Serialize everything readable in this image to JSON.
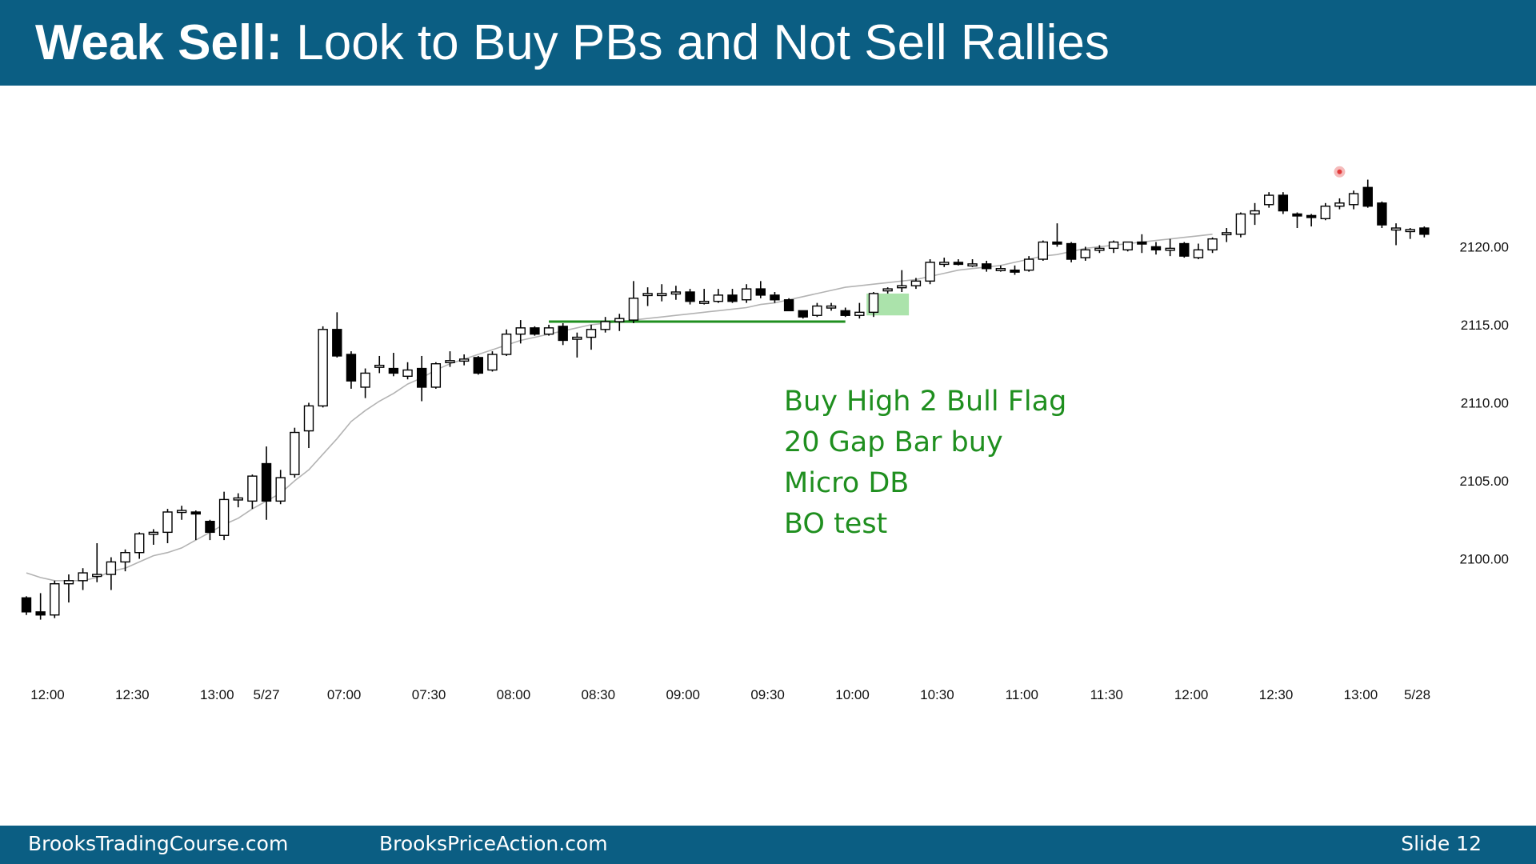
{
  "title": {
    "bold": "Weak Sell:",
    "rest": " Look to Buy PBs and Not Sell Rallies"
  },
  "footer": {
    "left": "BrooksTradingCourse.com",
    "middle": "BrooksPriceAction.com",
    "slide": "Slide  12"
  },
  "chart_data": {
    "type": "candlestick",
    "title": "Weak Sell: Look to Buy PBs and Not Sell Rallies",
    "y_ticks": [
      "2100.00",
      "2105.00",
      "2110.00",
      "2115.00",
      "2120.00"
    ],
    "y_tick_values": [
      2100,
      2105,
      2110,
      2115,
      2120
    ],
    "ylim": [
      2092.9,
      2125.2
    ],
    "x_ticks": [
      "12:00",
      "12:30",
      "13:00",
      "5/27",
      "07:00",
      "07:30",
      "08:00",
      "08:30",
      "09:00",
      "09:30",
      "10:00",
      "10:30",
      "11:00",
      "11:30",
      "12:00",
      "12:30",
      "13:00",
      "5/28"
    ],
    "x_tick_bar_index": [
      1.5,
      7.5,
      13.5,
      17,
      22.5,
      28.5,
      34.5,
      40.5,
      46.5,
      52.5,
      58.5,
      64.5,
      70.5,
      76.5,
      82.5,
      88.5,
      94.5,
      98.5
    ],
    "grid": false,
    "ema_period": 20,
    "bars": [
      {
        "o": 2097.5,
        "h": 2097.6,
        "l": 2096.4,
        "c": 2096.6
      },
      {
        "o": 2096.6,
        "h": 2097.8,
        "l": 2096.1,
        "c": 2096.4
      },
      {
        "o": 2096.4,
        "h": 2098.6,
        "l": 2096.2,
        "c": 2098.4
      },
      {
        "o": 2098.4,
        "h": 2099.0,
        "l": 2097.2,
        "c": 2098.6
      },
      {
        "o": 2098.6,
        "h": 2099.4,
        "l": 2098.0,
        "c": 2099.1
      },
      {
        "o": 2099.0,
        "h": 2101.0,
        "l": 2098.5,
        "c": 2099.0
      },
      {
        "o": 2099.0,
        "h": 2100.1,
        "l": 2098.0,
        "c": 2099.8
      },
      {
        "o": 2099.8,
        "h": 2100.6,
        "l": 2099.2,
        "c": 2100.4
      },
      {
        "o": 2100.4,
        "h": 2101.7,
        "l": 2100.0,
        "c": 2101.6
      },
      {
        "o": 2101.6,
        "h": 2101.9,
        "l": 2100.9,
        "c": 2101.7
      },
      {
        "o": 2101.7,
        "h": 2103.2,
        "l": 2101.0,
        "c": 2103.0
      },
      {
        "o": 2103.0,
        "h": 2103.4,
        "l": 2102.5,
        "c": 2103.1
      },
      {
        "o": 2103.0,
        "h": 2103.1,
        "l": 2101.2,
        "c": 2102.9
      },
      {
        "o": 2102.4,
        "h": 2102.5,
        "l": 2101.2,
        "c": 2101.7
      },
      {
        "o": 2101.5,
        "h": 2104.3,
        "l": 2101.2,
        "c": 2103.8
      },
      {
        "o": 2103.8,
        "h": 2104.2,
        "l": 2103.3,
        "c": 2103.9
      },
      {
        "o": 2103.7,
        "h": 2105.4,
        "l": 2103.2,
        "c": 2105.3
      },
      {
        "o": 2106.1,
        "h": 2107.2,
        "l": 2102.5,
        "c": 2103.7
      },
      {
        "o": 2103.7,
        "h": 2105.7,
        "l": 2103.5,
        "c": 2105.2
      },
      {
        "o": 2105.4,
        "h": 2108.4,
        "l": 2105.2,
        "c": 2108.1
      },
      {
        "o": 2108.2,
        "h": 2110.0,
        "l": 2107.1,
        "c": 2109.8
      },
      {
        "o": 2109.8,
        "h": 2114.9,
        "l": 2109.7,
        "c": 2114.7
      },
      {
        "o": 2114.7,
        "h": 2115.8,
        "l": 2112.9,
        "c": 2113.0
      },
      {
        "o": 2113.1,
        "h": 2113.3,
        "l": 2110.9,
        "c": 2111.4
      },
      {
        "o": 2111.0,
        "h": 2112.2,
        "l": 2110.3,
        "c": 2111.9
      },
      {
        "o": 2112.3,
        "h": 2113.0,
        "l": 2111.9,
        "c": 2112.4
      },
      {
        "o": 2112.2,
        "h": 2113.2,
        "l": 2111.7,
        "c": 2111.9
      },
      {
        "o": 2111.7,
        "h": 2112.6,
        "l": 2111.5,
        "c": 2112.1
      },
      {
        "o": 2112.2,
        "h": 2113.0,
        "l": 2110.1,
        "c": 2111.0
      },
      {
        "o": 2111.0,
        "h": 2112.6,
        "l": 2110.9,
        "c": 2112.5
      },
      {
        "o": 2112.6,
        "h": 2113.3,
        "l": 2112.3,
        "c": 2112.7
      },
      {
        "o": 2112.7,
        "h": 2113.1,
        "l": 2112.4,
        "c": 2112.8
      },
      {
        "o": 2112.9,
        "h": 2113.0,
        "l": 2111.8,
        "c": 2111.9
      },
      {
        "o": 2112.1,
        "h": 2113.3,
        "l": 2112.0,
        "c": 2113.1
      },
      {
        "o": 2113.1,
        "h": 2114.7,
        "l": 2113.0,
        "c": 2114.4
      },
      {
        "o": 2114.4,
        "h": 2115.3,
        "l": 2113.8,
        "c": 2114.8
      },
      {
        "o": 2114.8,
        "h": 2114.9,
        "l": 2114.3,
        "c": 2114.4
      },
      {
        "o": 2114.4,
        "h": 2115.0,
        "l": 2114.3,
        "c": 2114.8
      },
      {
        "o": 2114.9,
        "h": 2115.1,
        "l": 2113.7,
        "c": 2114.0
      },
      {
        "o": 2114.1,
        "h": 2114.5,
        "l": 2112.9,
        "c": 2114.2
      },
      {
        "o": 2114.2,
        "h": 2115.0,
        "l": 2113.4,
        "c": 2114.7
      },
      {
        "o": 2114.7,
        "h": 2115.5,
        "l": 2114.5,
        "c": 2115.2
      },
      {
        "o": 2115.2,
        "h": 2115.7,
        "l": 2114.6,
        "c": 2115.4
      },
      {
        "o": 2115.3,
        "h": 2117.8,
        "l": 2115.1,
        "c": 2116.7
      },
      {
        "o": 2116.9,
        "h": 2117.4,
        "l": 2116.2,
        "c": 2117.0
      },
      {
        "o": 2117.0,
        "h": 2117.6,
        "l": 2116.5,
        "c": 2117.0
      },
      {
        "o": 2117.0,
        "h": 2117.5,
        "l": 2116.6,
        "c": 2117.1
      },
      {
        "o": 2117.1,
        "h": 2117.3,
        "l": 2116.3,
        "c": 2116.5
      },
      {
        "o": 2116.5,
        "h": 2117.3,
        "l": 2116.3,
        "c": 2116.5
      },
      {
        "o": 2116.5,
        "h": 2117.3,
        "l": 2116.4,
        "c": 2116.9
      },
      {
        "o": 2116.9,
        "h": 2117.3,
        "l": 2116.4,
        "c": 2116.5
      },
      {
        "o": 2116.6,
        "h": 2117.6,
        "l": 2116.4,
        "c": 2117.3
      },
      {
        "o": 2117.3,
        "h": 2117.8,
        "l": 2116.7,
        "c": 2116.9
      },
      {
        "o": 2116.9,
        "h": 2117.1,
        "l": 2116.4,
        "c": 2116.6
      },
      {
        "o": 2116.6,
        "h": 2116.7,
        "l": 2115.9,
        "c": 2115.9
      },
      {
        "o": 2115.9,
        "h": 2115.9,
        "l": 2115.4,
        "c": 2115.5
      },
      {
        "o": 2115.6,
        "h": 2116.4,
        "l": 2115.5,
        "c": 2116.2
      },
      {
        "o": 2116.2,
        "h": 2116.4,
        "l": 2115.9,
        "c": 2116.2
      },
      {
        "o": 2115.9,
        "h": 2116.1,
        "l": 2115.5,
        "c": 2115.6
      },
      {
        "o": 2115.6,
        "h": 2116.4,
        "l": 2115.4,
        "c": 2115.8
      },
      {
        "o": 2115.8,
        "h": 2117.1,
        "l": 2115.5,
        "c": 2117.0
      },
      {
        "o": 2117.2,
        "h": 2117.4,
        "l": 2117.0,
        "c": 2117.3
      },
      {
        "o": 2117.4,
        "h": 2118.5,
        "l": 2117.1,
        "c": 2117.5
      },
      {
        "o": 2117.5,
        "h": 2118.0,
        "l": 2117.3,
        "c": 2117.8
      },
      {
        "o": 2117.8,
        "h": 2119.2,
        "l": 2117.6,
        "c": 2119.0
      },
      {
        "o": 2119.0,
        "h": 2119.3,
        "l": 2118.7,
        "c": 2119.0
      },
      {
        "o": 2119.0,
        "h": 2119.2,
        "l": 2118.8,
        "c": 2118.9
      },
      {
        "o": 2118.9,
        "h": 2119.2,
        "l": 2118.7,
        "c": 2118.9
      },
      {
        "o": 2118.9,
        "h": 2119.1,
        "l": 2118.4,
        "c": 2118.6
      },
      {
        "o": 2118.6,
        "h": 2118.8,
        "l": 2118.4,
        "c": 2118.6
      },
      {
        "o": 2118.5,
        "h": 2118.8,
        "l": 2118.2,
        "c": 2118.4
      },
      {
        "o": 2118.5,
        "h": 2119.4,
        "l": 2118.4,
        "c": 2119.2
      },
      {
        "o": 2119.2,
        "h": 2120.4,
        "l": 2119.1,
        "c": 2120.3
      },
      {
        "o": 2120.3,
        "h": 2121.5,
        "l": 2120.0,
        "c": 2120.2
      },
      {
        "o": 2120.2,
        "h": 2120.3,
        "l": 2119.0,
        "c": 2119.2
      },
      {
        "o": 2119.3,
        "h": 2120.0,
        "l": 2119.1,
        "c": 2119.8
      },
      {
        "o": 2119.9,
        "h": 2120.1,
        "l": 2119.6,
        "c": 2119.9
      },
      {
        "o": 2119.9,
        "h": 2120.4,
        "l": 2119.6,
        "c": 2120.3
      },
      {
        "o": 2119.8,
        "h": 2120.3,
        "l": 2119.7,
        "c": 2120.3
      },
      {
        "o": 2120.3,
        "h": 2120.8,
        "l": 2119.6,
        "c": 2120.2
      },
      {
        "o": 2120.0,
        "h": 2120.3,
        "l": 2119.5,
        "c": 2119.8
      },
      {
        "o": 2119.8,
        "h": 2120.5,
        "l": 2119.4,
        "c": 2119.9
      },
      {
        "o": 2120.2,
        "h": 2120.3,
        "l": 2119.3,
        "c": 2119.4
      },
      {
        "o": 2119.3,
        "h": 2120.2,
        "l": 2119.2,
        "c": 2119.8
      },
      {
        "o": 2119.8,
        "h": 2120.6,
        "l": 2119.6,
        "c": 2120.5
      },
      {
        "o": 2120.8,
        "h": 2121.2,
        "l": 2120.3,
        "c": 2120.9
      },
      {
        "o": 2120.8,
        "h": 2122.2,
        "l": 2120.6,
        "c": 2122.1
      },
      {
        "o": 2122.1,
        "h": 2122.8,
        "l": 2121.4,
        "c": 2122.3
      },
      {
        "o": 2122.7,
        "h": 2123.5,
        "l": 2122.5,
        "c": 2123.3
      },
      {
        "o": 2123.3,
        "h": 2123.5,
        "l": 2122.1,
        "c": 2122.3
      },
      {
        "o": 2122.1,
        "h": 2122.2,
        "l": 2121.2,
        "c": 2122.0
      },
      {
        "o": 2122.0,
        "h": 2122.1,
        "l": 2121.3,
        "c": 2121.9
      },
      {
        "o": 2121.8,
        "h": 2122.8,
        "l": 2121.7,
        "c": 2122.6
      },
      {
        "o": 2122.6,
        "h": 2123.1,
        "l": 2122.4,
        "c": 2122.8
      },
      {
        "o": 2122.7,
        "h": 2123.6,
        "l": 2122.4,
        "c": 2123.4
      },
      {
        "o": 2123.8,
        "h": 2124.3,
        "l": 2122.5,
        "c": 2122.6
      },
      {
        "o": 2122.8,
        "h": 2122.9,
        "l": 2121.2,
        "c": 2121.4
      },
      {
        "o": 2121.2,
        "h": 2121.5,
        "l": 2120.1,
        "c": 2121.2
      },
      {
        "o": 2121.1,
        "h": 2121.2,
        "l": 2120.5,
        "c": 2121.1
      },
      {
        "o": 2121.2,
        "h": 2121.3,
        "l": 2120.6,
        "c": 2120.8
      }
    ],
    "ema_values": [
      2099.1,
      2098.8,
      2098.6,
      2098.6,
      2098.6,
      2098.8,
      2099.2,
      2099.4,
      2099.8,
      2100.2,
      2100.4,
      2100.7,
      2101.2,
      2101.7,
      2102.2,
      2102.6,
      2103.2,
      2103.7,
      2104.2,
      2105.0,
      2105.7,
      2106.7,
      2107.7,
      2108.8,
      2109.5,
      2110.1,
      2110.6,
      2111.2,
      2111.6,
      2112.1,
      2112.5,
      2112.8,
      2113.1,
      2113.4,
      2113.7,
      2114.0,
      2114.2,
      2114.4,
      2114.6,
      2114.8,
      2115.0,
      2115.1,
      2115.2,
      2115.3,
      2115.4,
      2115.5,
      2115.6,
      2115.7,
      2115.8,
      2115.9,
      2116.0,
      2116.1,
      2116.3,
      2116.4,
      2116.6,
      2116.8,
      2117.0,
      2117.2,
      2117.4,
      2117.5,
      2117.6,
      2117.7,
      2117.8,
      2117.9,
      2118.1,
      2118.3,
      2118.5,
      2118.6,
      2118.7,
      2118.8,
      2119.0,
      2119.2,
      2119.4,
      2119.5,
      2119.7,
      2119.9,
      2120.0,
      2120.1,
      2120.2,
      2120.3,
      2120.4,
      2120.5,
      2120.6,
      2120.7,
      2120.8
    ],
    "ema_start_index": 0,
    "annotations": {
      "lines": [
        "Buy High 2 Bull Flag",
        "20 Gap Bar buy",
        "Micro DB",
        "BO test"
      ],
      "hline": {
        "price": 2115.2,
        "from_bar": 37,
        "to_bar": 58
      },
      "highlight": {
        "price_low": 2115.6,
        "price_high": 2117.0,
        "from_bar": 60,
        "to_bar": 62
      },
      "marker": {
        "bar": 93,
        "price": 2124.8
      }
    },
    "colors": {
      "bull_fill": "#ffffff",
      "bear_fill": "#000000",
      "outline": "#000000",
      "ema": "#b3b3b3",
      "annotation": "#1f8f1f",
      "highlight": "#8fd98f",
      "marker": "#e23b3b"
    }
  }
}
